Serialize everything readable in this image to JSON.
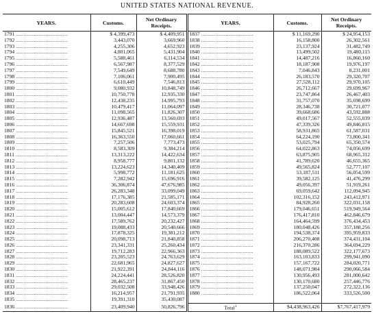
{
  "title": "UNITED STATES NATIONAL REVENUE.",
  "headers": {
    "years": "YEARS.",
    "customs": "Customs.",
    "receipts": "Net Ordinary Receipts."
  },
  "left": [
    [
      "1791",
      "$ 4,399,473",
      "$ 4,409,951"
    ],
    [
      "1792",
      "3,443,070",
      "3,669,960"
    ],
    [
      "1793",
      "4,255,306",
      "4,652,923"
    ],
    [
      "1794",
      "4,801,065",
      "5,431,904"
    ],
    [
      "1795",
      "5,588,461",
      "6,114,534"
    ],
    [
      "1796",
      "6,567,987",
      "8,377,529"
    ],
    [
      "1797",
      "7,549,649",
      "8,688,780"
    ],
    [
      "1798",
      "7,106,061",
      "7,900,495"
    ],
    [
      "1799",
      "6,610,449",
      "7,546,813"
    ],
    [
      "1800",
      "9,080,932",
      "10,848,749"
    ],
    [
      "1801",
      "10,750,778",
      "12,935,330"
    ],
    [
      "1802",
      "12,438,235",
      "14,995,793"
    ],
    [
      "1803",
      "10,479,417",
      "11,064,097"
    ],
    [
      "1804",
      "11,098,565",
      "11,826,307"
    ],
    [
      "1805",
      "12,936,487",
      "13,560,693"
    ],
    [
      "1806",
      "14,667,698",
      "15,559,931"
    ],
    [
      "1807",
      "15,845,521",
      "16,398,019"
    ],
    [
      "1808",
      "16,363,550",
      "17,060,661"
    ],
    [
      "1809",
      "7,257,506",
      "7,773,473"
    ],
    [
      "1810",
      "8,583,309",
      "9,384,214"
    ],
    [
      "1811",
      "13,313,222",
      "14,422,634"
    ],
    [
      "1812",
      "8,958,777",
      "9,801,132"
    ],
    [
      "1813",
      "13,224,623",
      "14,340,409"
    ],
    [
      "1814",
      "5,998,772",
      "11,181,625"
    ],
    [
      "1815",
      "7,282,942",
      "15,696,916"
    ],
    [
      "1816",
      "36,306,874",
      "47,676,985"
    ],
    [
      "1817",
      "26,283,348",
      "33,099,049"
    ],
    [
      "1818",
      "17,176,385",
      "21,585,171"
    ],
    [
      "1819",
      "20,283,608",
      "24,603,374"
    ],
    [
      "1820",
      "15,005,612",
      "17,840,669"
    ],
    [
      "1821",
      "13,004,447",
      "14,573,379"
    ],
    [
      "1822",
      "17,589,762",
      "20,232,427"
    ],
    [
      "1823",
      "19,088,433",
      "20,540,666"
    ],
    [
      "1824",
      "17,878,325",
      "19,381,212"
    ],
    [
      "1825",
      "20,098,713",
      "21,840,858"
    ],
    [
      "1826",
      "23,341,331",
      "25,260,434"
    ],
    [
      "1827",
      "19,712,283",
      "22,966,363"
    ],
    [
      "1828",
      "23,205,523",
      "24,763,629"
    ],
    [
      "1829",
      "22,681,965",
      "24,827,627"
    ],
    [
      "1830",
      "21,922,391",
      "24,844,116"
    ],
    [
      "1831",
      "24,224,441",
      "28,526,820"
    ],
    [
      "1832",
      "28,465,237",
      "31,867,450"
    ],
    [
      "1833",
      "29,032,508",
      "33,948,426"
    ],
    [
      "1834",
      "16,214,957",
      "21,791,935"
    ],
    [
      "1835",
      "19,391,310",
      "35,430,087"
    ],
    [
      "1836",
      "23,409,940",
      "50,826,796"
    ]
  ],
  "right": [
    [
      "1837",
      "$ 11,169,290",
      "$ 24,954,153"
    ],
    [
      "1838",
      "16,158,800",
      "26,302,561"
    ],
    [
      "1839",
      "23,137,924",
      "31,482,749"
    ],
    [
      "1840",
      "13,499,502",
      "19,480,115"
    ],
    [
      "1841",
      "14,487,216",
      "16,860,160"
    ],
    [
      "1842",
      "18,187,908",
      "19,976,197"
    ],
    [
      "1843",
      "7,046,843",
      "8,231,001"
    ],
    [
      "1844",
      "26,183,570",
      "29,320,707"
    ],
    [
      "1845",
      "27,528,112",
      "29,970,105"
    ],
    [
      "1846",
      "26,712,667",
      "29,699,967"
    ],
    [
      "1847",
      "23,747,864",
      "26,467,403"
    ],
    [
      "1848",
      "31,757,070",
      "35,698,699"
    ],
    [
      "1849",
      "28,346,738",
      "30,721,077"
    ],
    [
      "1850",
      "39,668,686",
      "43,592,888"
    ],
    [
      "1851",
      "49,017,567",
      "52,555,039"
    ],
    [
      "1852",
      "47,339,326",
      "49,846,815"
    ],
    [
      "1853",
      "58,931,865",
      "61,587,031"
    ],
    [
      "1854",
      "64,224,190",
      "73,800,341"
    ],
    [
      "1855",
      "53,025,794",
      "65,350,574"
    ],
    [
      "1856",
      "64,022,863",
      "74,056,699"
    ],
    [
      "1857",
      "63,875,905",
      "68,965,312"
    ],
    [
      "1858",
      "41,789,620",
      "46,655,365"
    ],
    [
      "1859",
      "49,565,824",
      "52,777,107"
    ],
    [
      "1860",
      "53,187,511",
      "56,054,599"
    ],
    [
      "1861",
      "39,582,125",
      "41,476,299"
    ],
    [
      "1862",
      "49,056,397",
      "51,919,261"
    ],
    [
      "1863",
      "69,059,642",
      "112,094,945"
    ],
    [
      "1864",
      "102,316,152",
      "243,412,971"
    ],
    [
      "1865",
      "84,928,260",
      "322,031,158"
    ],
    [
      "1866",
      "179,046,651",
      "519,949,564"
    ],
    [
      "1867",
      "176,417,810",
      "462,846,679"
    ],
    [
      "1868",
      "164,464,599",
      "376,434,453"
    ],
    [
      "1869",
      "180,048,426",
      "357,188,256"
    ],
    [
      "1870",
      "194,538,374",
      "395,959,833"
    ],
    [
      "1871",
      "206,270,408",
      "374,431,104"
    ],
    [
      "1872",
      "216,370,286",
      "364,694,229"
    ],
    [
      "1873",
      "188,089,522",
      "322,177,673"
    ],
    [
      "1874",
      "163,103,833",
      "299,941,090"
    ],
    [
      "1875",
      "157,167,722",
      "284,020,771"
    ],
    [
      "1876",
      "148,071,984",
      "290,066,584"
    ],
    [
      "1877",
      "130,956,493",
      "281,000,642"
    ],
    [
      "1878",
      "130,170,680",
      "257,446,776"
    ],
    [
      "1879",
      "137,250,047",
      "272,322,136"
    ],
    [
      "1880",
      "186,522,064",
      "333,526,500"
    ]
  ],
  "total": {
    "label": "Total",
    "footnote_mark": "1",
    "customs": "$4,438,963,426",
    "receipts": "$7,767,417,979"
  }
}
